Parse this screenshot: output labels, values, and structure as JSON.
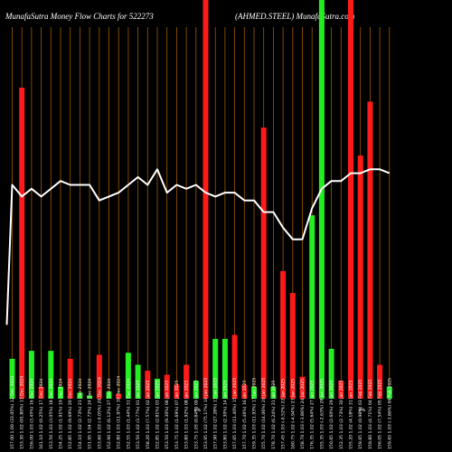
{
  "header": {
    "left": "MunafaSutra  Money Flow  Charts for 522273",
    "right": "(AHMED.STEEL) MunafaSutra.com"
  },
  "colors": {
    "background": "#000000",
    "up": "#22ee22",
    "down": "#ff1a1a",
    "grid": "#a05a00",
    "line": "#ffffff",
    "text": "#ffffff"
  },
  "chart_data": {
    "type": "bar",
    "bars": [
      {
        "label": "12 Dec 2024",
        "value": 10,
        "color": "green"
      },
      {
        "label": "13 Dec 2024",
        "value": 78,
        "color": "red"
      },
      {
        "label": "16 Dec 2024",
        "value": 12,
        "color": "green"
      },
      {
        "label": "17 Dec 2024",
        "value": 3,
        "color": "red"
      },
      {
        "label": "18 Dec 2024",
        "value": 12,
        "color": "green"
      },
      {
        "label": "19 Dec 2024",
        "value": 3,
        "color": "green"
      },
      {
        "label": "20 Dec 2024",
        "value": 10,
        "color": "red"
      },
      {
        "label": "23 Dec 2024",
        "value": 1.5,
        "color": "green"
      },
      {
        "label": "24 Dec 2024",
        "value": 0.8,
        "color": "green"
      },
      {
        "label": "26 Dec 2024",
        "value": 11,
        "color": "red"
      },
      {
        "label": "27 Dec 2024",
        "value": 1.8,
        "color": "green"
      },
      {
        "label": "30 Dec 2024",
        "value": 1.2,
        "color": "red"
      },
      {
        "label": "31 Dec 2024",
        "value": 11.5,
        "color": "green"
      },
      {
        "label": "01 Jan 2025",
        "value": 8.5,
        "color": "green"
      },
      {
        "label": "02 Jan 2025",
        "value": 7,
        "color": "red"
      },
      {
        "label": "03 Jan 2025",
        "value": 5,
        "color": "green"
      },
      {
        "label": "06 Jan 2025",
        "value": 6,
        "color": "red"
      },
      {
        "label": "07 Jan 2025",
        "value": 3.5,
        "color": "red"
      },
      {
        "label": "08 Jan 2025",
        "value": 8.5,
        "color": "red"
      },
      {
        "label": "09 Jan 2025",
        "value": 4.5,
        "color": "green"
      },
      {
        "label": "10 Jan 2025",
        "value": 100,
        "color": "red"
      },
      {
        "label": "13 Jan 2025",
        "value": 15,
        "color": "green"
      },
      {
        "label": "14 Jan 2025",
        "value": 15,
        "color": "green"
      },
      {
        "label": "15 Jan 2025",
        "value": 16,
        "color": "red"
      },
      {
        "label": "16 Jan 2025",
        "value": 3.5,
        "color": "red"
      },
      {
        "label": "17 Jan 2025",
        "value": 3,
        "color": "green"
      },
      {
        "label": "20 Jan 2025",
        "value": 68,
        "color": "red"
      },
      {
        "label": "21 Jan 2025",
        "value": 3,
        "color": "green"
      },
      {
        "label": "22 Jan 2025",
        "value": 32,
        "color": "red"
      },
      {
        "label": "23 Jan 2025",
        "value": 26.5,
        "color": "red"
      },
      {
        "label": "24 Jan 2025",
        "value": 5.5,
        "color": "red"
      },
      {
        "label": "27 Jan 2025",
        "value": 46,
        "color": "green"
      },
      {
        "label": "28 Jan 2025",
        "value": 100,
        "color": "green"
      },
      {
        "label": "29 Jan 2025",
        "value": 12.5,
        "color": "green"
      },
      {
        "label": "30 Jan 2025",
        "value": 4.5,
        "color": "red"
      },
      {
        "label": "31 Jan 2025",
        "value": 100,
        "color": "red"
      },
      {
        "label": "03 Feb 2025",
        "value": 61,
        "color": "red"
      },
      {
        "label": "04 Feb 2025",
        "value": 74.5,
        "color": "red"
      },
      {
        "label": "05 Feb 2025",
        "value": 8.5,
        "color": "red"
      },
      {
        "label": "06 Feb 2025",
        "value": 3,
        "color": "green"
      }
    ],
    "line": [
      55,
      52,
      54,
      52,
      54,
      56,
      55,
      55,
      55,
      51,
      52,
      53,
      55,
      57,
      55,
      59,
      53,
      55,
      54,
      55,
      53,
      52,
      53,
      53,
      51,
      51,
      48,
      48,
      44,
      41,
      41,
      49,
      54,
      56,
      56,
      58,
      58,
      59,
      59,
      58
    ],
    "line_start": 19,
    "ylim": [
      0,
      100
    ],
    "line_ylim": [
      0,
      100
    ],
    "xtick_labels": [
      "1.00",
      "1.02",
      "1.03",
      "1.02",
      "1.03",
      "1.02",
      "1.02",
      "1.02",
      "1.04",
      "1.03",
      "1.02",
      "1.03",
      "1.03",
      "1.02",
      "1.03",
      "1.02",
      "1.03",
      "1.02",
      "1.03",
      "1.05",
      "1.02",
      "1.02",
      "1.02",
      "1.03",
      "1.02",
      "1.03",
      "1.02",
      "1.02",
      "1.03",
      "1.02",
      "1.03",
      "1.02",
      "1.03",
      "1.02",
      "1.03",
      "1.02",
      "1.02",
      "1.03",
      "1.02",
      "1.03"
    ],
    "xtick_prefix": [
      "157.00",
      "153.30",
      "156.00",
      "161.10",
      "153.50",
      "154.25",
      "152.85",
      "154.10",
      "151.95",
      "153.60",
      "152.90",
      "152.80",
      "152.55",
      "153.50",
      "158.20",
      "152.85",
      "153.50",
      "153.75",
      "153.80",
      "153.75",
      "153.95",
      "157.90",
      "153.80",
      "157.65",
      "157.70",
      "159.35",
      "155.70",
      "178.70",
      "157.45",
      "160.75",
      "158.70",
      "176.35",
      "155.35",
      "150.65",
      "152.35",
      "155.20",
      "159.65",
      "159.80",
      "156.05",
      "159.65"
    ],
    "xtick_suffix": [
      "(33.05%)",
      "(91.80%)",
      "(3.45%)",
      "(0.25%)",
      "(3.05%)",
      "(1.91%)",
      "(9.69%)",
      "(2.73%)",
      "(2.72%)",
      "(-0.05%)",
      "(6.12%)",
      "(11.97%)",
      "(1.44%)",
      "(3.77%)",
      "(7.57%)",
      "(2.81%)",
      "(9.30%)",
      "(1.69%)",
      "(1.92%)",
      "(0.84%)",
      "(75.17%)",
      "(27.28%)",
      "(2.30%)",
      "(11.40%)",
      "(5.46%)",
      "(11.93%)",
      "(14.06%)",
      "(6.24%)",
      "(-0.52%)",
      "(-4.94%)",
      "(-3.86%)",
      "(5.64%)",
      "(-2.63%)",
      "(2.60%)",
      "(2.73%)",
      "(4.18%)",
      "(0.98%)",
      "(4.71%)",
      "(7.54%)",
      "(-3.86%)"
    ],
    "zero_marks": [
      "0%",
      "0%"
    ]
  }
}
